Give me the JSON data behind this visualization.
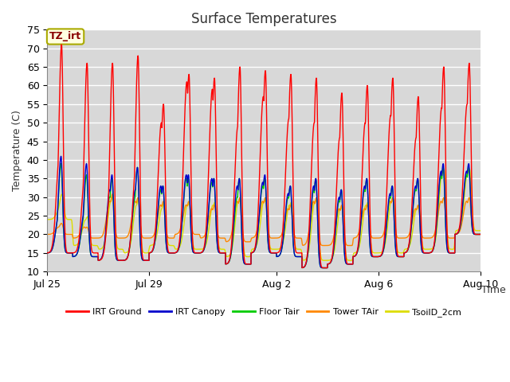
{
  "title": "Surface Temperatures",
  "xlabel": "Time",
  "ylabel": "Temperature (C)",
  "ylim": [
    10,
    75
  ],
  "background_color": "#ffffff",
  "plot_bg_color": "#d8d8d8",
  "grid_color": "#ffffff",
  "annotation_text": "TZ_irt",
  "annotation_bg": "#ffffe0",
  "annotation_border": "#aaaa00",
  "annotation_text_color": "#880000",
  "legend_entries": [
    "IRT Ground",
    "IRT Canopy",
    "Floor Tair",
    "Tower TAir",
    "TsoilD_2cm"
  ],
  "legend_colors": [
    "#ff0000",
    "#0000cc",
    "#00cc00",
    "#ff8800",
    "#dddd00"
  ],
  "series_colors": [
    "#ff0000",
    "#0000cc",
    "#00cc00",
    "#ff8800",
    "#dddd00"
  ],
  "tick_dates": [
    "Jul 25",
    "Jul 29",
    "Aug 2",
    "Aug 6",
    "Aug 10"
  ],
  "tick_day_offsets": [
    0,
    4,
    9,
    13,
    17
  ],
  "n_days": 17,
  "n_points_per_day": 144,
  "peak_hour": 13.5,
  "peak_hour2": 11.5,
  "hours_per_day": 24,
  "red_peaks": [
    71,
    66,
    66,
    68,
    55,
    63,
    62,
    65,
    64,
    63,
    62,
    58,
    60,
    62,
    57,
    65,
    66
  ],
  "red_peaks2": [
    41,
    36,
    32,
    38,
    50,
    61,
    59,
    49,
    57,
    51,
    50,
    46,
    50,
    52,
    46,
    54,
    55
  ],
  "red_mins": [
    15,
    15,
    13,
    13,
    15,
    15,
    15,
    12,
    15,
    15,
    11,
    12,
    14,
    14,
    15,
    15,
    20
  ],
  "blue_peaks": [
    41,
    39,
    36,
    38,
    33,
    36,
    35,
    35,
    36,
    33,
    35,
    32,
    35,
    33,
    35,
    39,
    39
  ],
  "blue_peaks2": [
    25,
    26,
    32,
    32,
    33,
    36,
    35,
    33,
    34,
    31,
    33,
    30,
    33,
    31,
    33,
    37,
    37
  ],
  "blue_mins": [
    15,
    14,
    13,
    13,
    15,
    15,
    15,
    12,
    15,
    14,
    11,
    12,
    14,
    14,
    15,
    15,
    20
  ],
  "green_peaks": [
    39,
    36,
    35,
    38,
    33,
    35,
    35,
    35,
    35,
    33,
    35,
    32,
    35,
    33,
    35,
    38,
    38
  ],
  "green_peaks2": [
    25,
    25,
    30,
    30,
    32,
    35,
    34,
    30,
    33,
    30,
    32,
    29,
    32,
    30,
    32,
    36,
    36
  ],
  "green_mins": [
    15,
    14,
    13,
    13,
    15,
    15,
    15,
    12,
    15,
    14,
    11,
    12,
    14,
    14,
    15,
    15,
    20
  ],
  "orange_peaks": [
    23,
    22,
    31,
    30,
    29,
    29,
    28,
    30,
    30,
    28,
    30,
    28,
    28,
    30,
    28,
    30,
    30
  ],
  "orange_peaks2": [
    22,
    22,
    29,
    29,
    28,
    28,
    27,
    29,
    29,
    27,
    29,
    27,
    27,
    29,
    27,
    29,
    29
  ],
  "orange_mins": [
    20,
    19,
    19,
    19,
    19,
    20,
    19,
    18,
    19,
    19,
    17,
    17,
    19,
    19,
    19,
    19,
    20
  ],
  "yellow_peaks": [
    31,
    25,
    31,
    30,
    29,
    29,
    29,
    30,
    30,
    29,
    30,
    28,
    29,
    30,
    28,
    38,
    38
  ],
  "yellow_peaks2": [
    27,
    24,
    29,
    28,
    27,
    28,
    28,
    29,
    29,
    28,
    29,
    27,
    28,
    29,
    27,
    37,
    37
  ],
  "yellow_mins": [
    24,
    17,
    16,
    15,
    17,
    16,
    16,
    14,
    16,
    16,
    13,
    13,
    15,
    15,
    16,
    16,
    21
  ]
}
